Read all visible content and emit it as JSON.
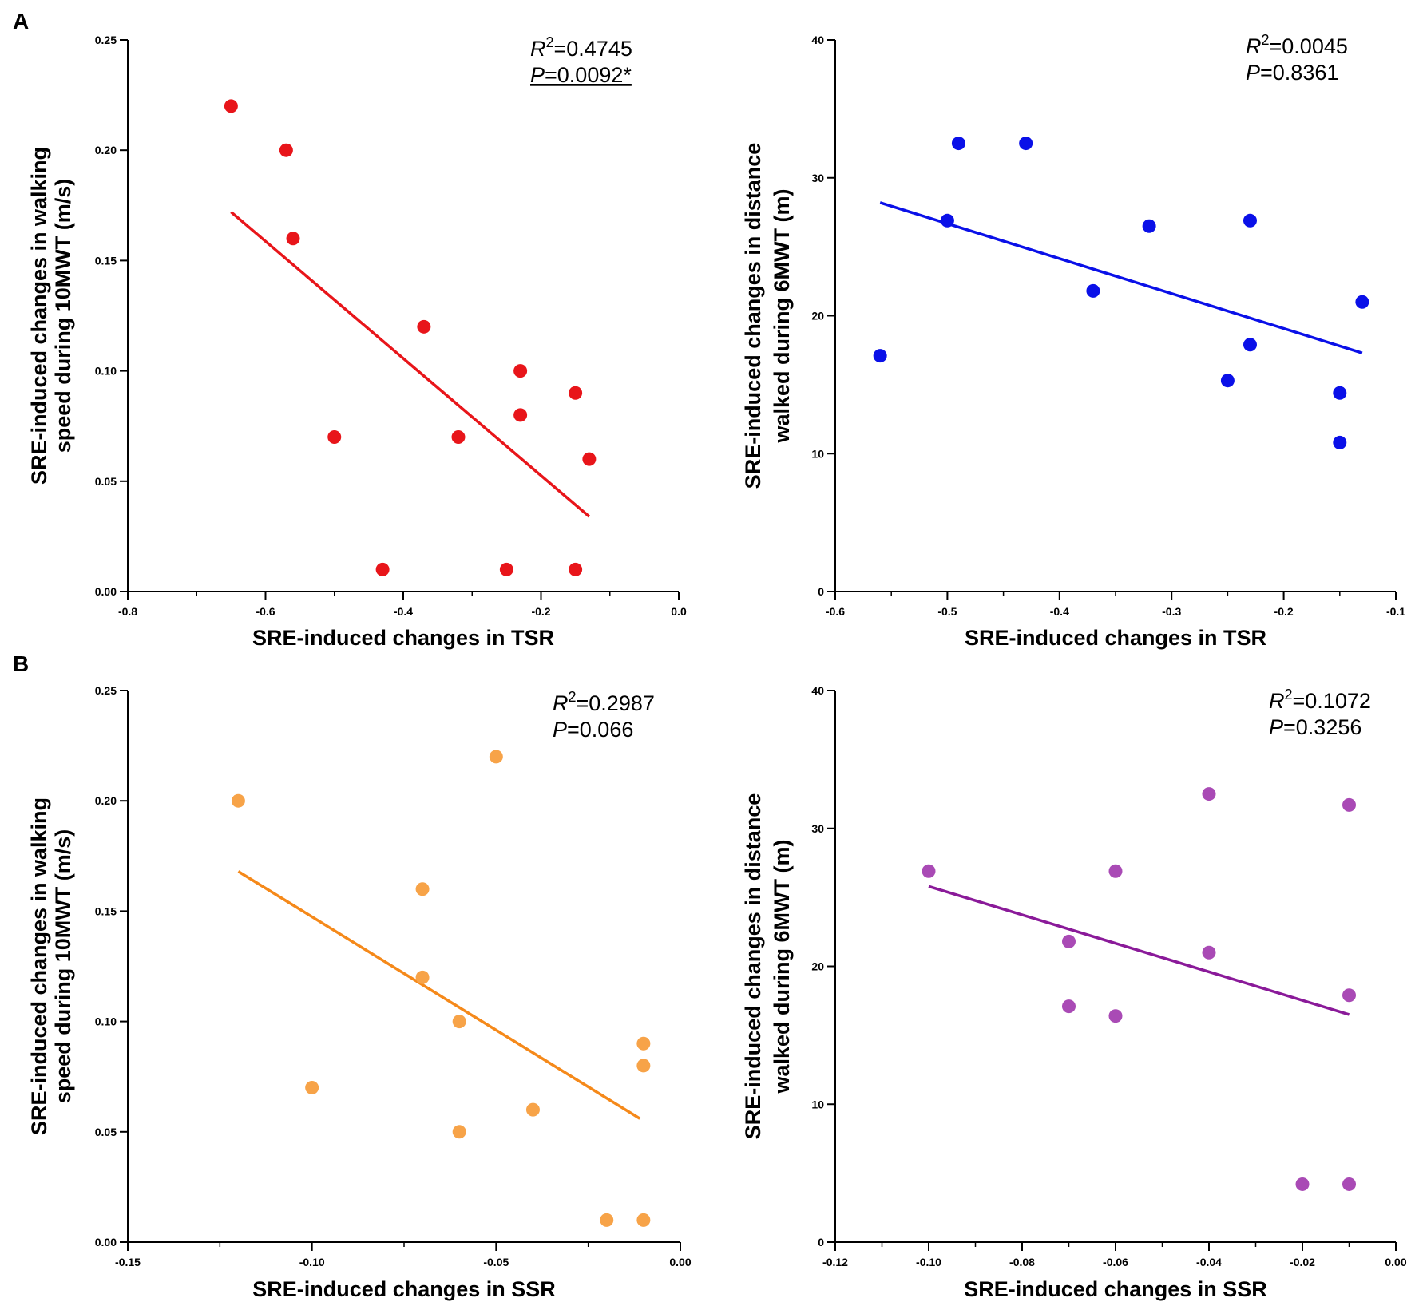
{
  "panel_labels": [
    "A",
    "B"
  ],
  "chart_data": [
    {
      "type": "scatter",
      "panel": "A",
      "title": "",
      "xlabel": "SRE-induced changes in TSR",
      "ylabel_lines": [
        "SRE-induced changes in walking",
        "speed during 10MWT  (m/s)"
      ],
      "xlim": [
        -0.8,
        0.0
      ],
      "ylim": [
        0.0,
        0.25
      ],
      "xticks": [
        -0.8,
        -0.6,
        -0.4,
        -0.2,
        0.0
      ],
      "xtick_labels": [
        "-0.8",
        "-0.6",
        "-0.4",
        "-0.2",
        "0.0"
      ],
      "xminor_step": 0.1,
      "yticks": [
        0.0,
        0.05,
        0.1,
        0.15,
        0.2,
        0.25
      ],
      "ytick_labels": [
        "0.00",
        "0.05",
        "0.10",
        "0.15",
        "0.20",
        "0.25"
      ],
      "color": "#e8151a",
      "points": [
        {
          "x": -0.65,
          "y": 0.22
        },
        {
          "x": -0.57,
          "y": 0.2
        },
        {
          "x": -0.56,
          "y": 0.16
        },
        {
          "x": -0.5,
          "y": 0.07
        },
        {
          "x": -0.43,
          "y": 0.01
        },
        {
          "x": -0.37,
          "y": 0.12
        },
        {
          "x": -0.32,
          "y": 0.07
        },
        {
          "x": -0.25,
          "y": 0.01
        },
        {
          "x": -0.23,
          "y": 0.1
        },
        {
          "x": -0.23,
          "y": 0.08
        },
        {
          "x": -0.15,
          "y": 0.09
        },
        {
          "x": -0.15,
          "y": 0.01
        },
        {
          "x": -0.13,
          "y": 0.06
        }
      ],
      "fit_line": {
        "x": [
          -0.65,
          -0.13
        ],
        "y": [
          0.172,
          0.034
        ]
      },
      "stats": {
        "r2_label": "R",
        "r2_sup": "2",
        "r2_value": "=0.4745",
        "p_label": "P",
        "p_value": "=0.0092*",
        "p_underlined": true
      }
    },
    {
      "type": "scatter",
      "panel": "A",
      "title": "",
      "xlabel": "SRE-induced changes in TSR",
      "ylabel_lines": [
        "SRE-induced changes in distance",
        "walked during 6MWT (m)"
      ],
      "xlim": [
        -0.6,
        -0.1
      ],
      "ylim": [
        0,
        40
      ],
      "xticks": [
        -0.6,
        -0.5,
        -0.4,
        -0.3,
        -0.2,
        -0.1
      ],
      "xtick_labels": [
        "-0.6",
        "-0.5",
        "-0.4",
        "-0.3",
        "-0.2",
        "-0.1"
      ],
      "xminor_step": 0.05,
      "yticks": [
        0,
        10,
        20,
        30,
        40
      ],
      "ytick_labels": [
        "0",
        "10",
        "20",
        "30",
        "40"
      ],
      "color": "#0a10e8",
      "points": [
        {
          "x": -0.56,
          "y": 17.1
        },
        {
          "x": -0.5,
          "y": 26.9
        },
        {
          "x": -0.49,
          "y": 32.5
        },
        {
          "x": -0.43,
          "y": 32.5
        },
        {
          "x": -0.37,
          "y": 21.8
        },
        {
          "x": -0.32,
          "y": 26.5
        },
        {
          "x": -0.25,
          "y": 15.3
        },
        {
          "x": -0.23,
          "y": 26.9
        },
        {
          "x": -0.23,
          "y": 17.9
        },
        {
          "x": -0.15,
          "y": 14.4
        },
        {
          "x": -0.15,
          "y": 10.8
        },
        {
          "x": -0.13,
          "y": 21.0
        }
      ],
      "fit_line": {
        "x": [
          -0.56,
          -0.13
        ],
        "y": [
          28.2,
          17.3
        ]
      },
      "stats": {
        "r2_label": "R",
        "r2_sup": "2",
        "r2_value": "=0.0045",
        "p_label": "P",
        "p_value": "=0.8361",
        "p_underlined": false
      }
    },
    {
      "type": "scatter",
      "panel": "B",
      "title": "",
      "xlabel": "SRE-induced changes in SSR",
      "ylabel_lines": [
        "SRE-induced changes in walking",
        "speed during 10MWT (m/s)"
      ],
      "xlim": [
        -0.15,
        0.0
      ],
      "ylim": [
        0.0,
        0.25
      ],
      "xticks": [
        -0.15,
        -0.1,
        -0.05,
        0.0
      ],
      "xtick_labels": [
        "-0.15",
        "-0.10",
        "-0.05",
        "0.00"
      ],
      "xminor_step": 0.025,
      "yticks": [
        0.0,
        0.05,
        0.1,
        0.15,
        0.2,
        0.25
      ],
      "ytick_labels": [
        "0.00",
        "0.05",
        "0.10",
        "0.15",
        "0.20",
        "0.25"
      ],
      "color": "#f7a348",
      "points": [
        {
          "x": -0.12,
          "y": 0.2
        },
        {
          "x": -0.1,
          "y": 0.07
        },
        {
          "x": -0.07,
          "y": 0.16
        },
        {
          "x": -0.07,
          "y": 0.12
        },
        {
          "x": -0.06,
          "y": 0.1
        },
        {
          "x": -0.06,
          "y": 0.05
        },
        {
          "x": -0.05,
          "y": 0.22
        },
        {
          "x": -0.04,
          "y": 0.06
        },
        {
          "x": -0.02,
          "y": 0.01
        },
        {
          "x": -0.01,
          "y": 0.09
        },
        {
          "x": -0.01,
          "y": 0.08
        },
        {
          "x": -0.01,
          "y": 0.01
        }
      ],
      "fit_line": {
        "x": [
          -0.12,
          -0.011
        ],
        "y": [
          0.168,
          0.056
        ]
      },
      "line_color": "#f5891a",
      "stats": {
        "r2_label": "R",
        "r2_sup": "2",
        "r2_value": "=0.2987",
        "p_label": "P",
        "p_value": "=0.066",
        "p_underlined": false
      }
    },
    {
      "type": "scatter",
      "panel": "B",
      "title": "",
      "xlabel": "SRE-induced changes in SSR",
      "ylabel_lines": [
        "SRE-induced changes in distance",
        "walked during 6MWT (m)"
      ],
      "xlim": [
        -0.12,
        0.0
      ],
      "ylim": [
        0,
        40
      ],
      "xticks": [
        -0.12,
        -0.1,
        -0.08,
        -0.06,
        -0.04,
        -0.02,
        0.0
      ],
      "xtick_labels": [
        "-0.12",
        "-0.10",
        "-0.08",
        "-0.06",
        "-0.04",
        "-0.02",
        "0.00"
      ],
      "xminor_step": 0.01,
      "yticks": [
        0,
        10,
        20,
        30,
        40
      ],
      "ytick_labels": [
        "0",
        "10",
        "20",
        "30",
        "40"
      ],
      "color": "#a94ab5",
      "points": [
        {
          "x": -0.1,
          "y": 26.9
        },
        {
          "x": -0.07,
          "y": 21.8
        },
        {
          "x": -0.07,
          "y": 17.1
        },
        {
          "x": -0.06,
          "y": 26.9
        },
        {
          "x": -0.06,
          "y": 16.4
        },
        {
          "x": -0.04,
          "y": 32.5
        },
        {
          "x": -0.04,
          "y": 21.0
        },
        {
          "x": -0.02,
          "y": 4.2
        },
        {
          "x": -0.01,
          "y": 31.7
        },
        {
          "x": -0.01,
          "y": 17.9
        },
        {
          "x": -0.01,
          "y": 4.2
        }
      ],
      "fit_line": {
        "x": [
          -0.1,
          -0.01
        ],
        "y": [
          25.8,
          16.5
        ]
      },
      "line_color": "#8a1a99",
      "stats": {
        "r2_label": "R",
        "r2_sup": "2",
        "r2_value": "=0.1072",
        "p_label": "P",
        "p_value": "=0.3256",
        "p_underlined": false
      }
    }
  ]
}
